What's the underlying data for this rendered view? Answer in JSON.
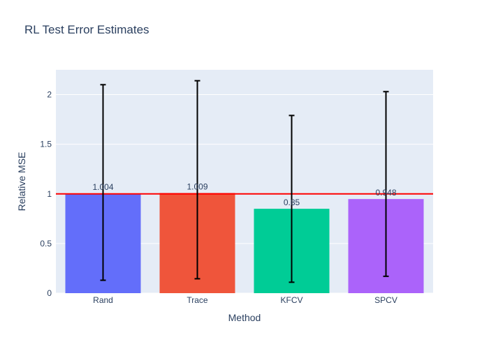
{
  "chart_data": {
    "type": "bar",
    "title": "RL Test Error Estimates",
    "xlabel": "Method",
    "ylabel": "Relative MSE",
    "categories": [
      "Rand",
      "Trace",
      "KFCV",
      "SPCV"
    ],
    "values": [
      1.004,
      1.009,
      0.85,
      0.948
    ],
    "value_labels": [
      "1.004",
      "1.009",
      "0.85",
      "0.948"
    ],
    "error_low": [
      0.13,
      0.145,
      0.11,
      0.17
    ],
    "error_high": [
      2.1,
      2.14,
      1.79,
      2.03
    ],
    "colors": [
      "#636efa",
      "#ef553b",
      "#00cc96",
      "#ab63fa"
    ],
    "reference_line": {
      "y": 1.0,
      "color": "#ff0000"
    },
    "ylim": [
      0,
      2.25
    ],
    "yticks": [
      0,
      0.5,
      1,
      1.5,
      2
    ],
    "ytick_labels": [
      "0",
      "0.5",
      "1",
      "1.5",
      "2"
    ],
    "grid": true,
    "plot_bgcolor": "#e5ecf6"
  }
}
